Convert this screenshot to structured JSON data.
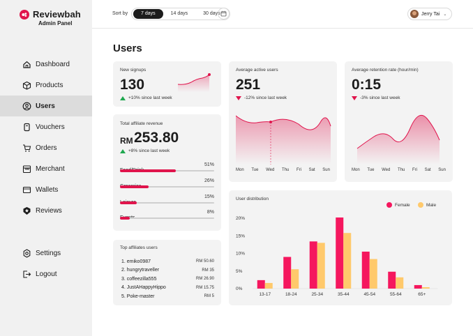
{
  "brand": {
    "name": "Reviewbah",
    "subtitle": "Admin Panel",
    "accent": "#e0144c"
  },
  "nav": {
    "items": [
      {
        "label": "Dashboard",
        "icon": "home-icon"
      },
      {
        "label": "Products",
        "icon": "box-icon"
      },
      {
        "label": "Users",
        "icon": "user-icon",
        "active": true
      },
      {
        "label": "Vouchers",
        "icon": "voucher-icon"
      },
      {
        "label": "Orders",
        "icon": "cart-icon"
      },
      {
        "label": "Merchant",
        "icon": "store-icon"
      },
      {
        "label": "Wallets",
        "icon": "wallet-icon"
      },
      {
        "label": "Reviews",
        "icon": "star-badge-icon"
      }
    ],
    "bottom": [
      {
        "label": "Settings",
        "icon": "gear-icon"
      },
      {
        "label": "Logout",
        "icon": "logout-icon"
      }
    ]
  },
  "topbar": {
    "sort_label": "Sort by",
    "sort_options": [
      "7 days",
      "14 days",
      "30 days"
    ],
    "sort_selected": "7 days",
    "calendar_icon": "calendar-icon",
    "user_name": "Jerry Tai"
  },
  "page": {
    "title": "Users"
  },
  "new_signups": {
    "label": "New signups",
    "value": "130",
    "delta": "+10% since last week",
    "trend": "up"
  },
  "active_users": {
    "label": "Average active users",
    "value": "251",
    "delta": "-12% since last week",
    "trend": "down",
    "days": [
      "Mon",
      "Tue",
      "Wed",
      "Thu",
      "Fri",
      "Sat",
      "Sun"
    ]
  },
  "retention": {
    "label": "Average retention rate (hour/min)",
    "value": "0:15",
    "delta": "-3% since last week",
    "trend": "down",
    "days": [
      "Mon",
      "Tue",
      "Wed",
      "Thu",
      "Fri",
      "Sat",
      "Sun"
    ]
  },
  "revenue": {
    "label": "Total affiliate revenue",
    "currency": "RM",
    "value": "253.80",
    "delta": "+8% since last week",
    "categories": [
      {
        "label": "Food/Drink",
        "pct": "51%",
        "value": 51
      },
      {
        "label": "Groceries",
        "pct": "26%",
        "value": 26
      },
      {
        "label": "Leisure",
        "pct": "15%",
        "value": 15
      },
      {
        "label": "Events",
        "pct": "8%",
        "value": 8
      }
    ]
  },
  "top_affiliates": {
    "label": "Top affiliates users",
    "rows": [
      {
        "name": "1.  emiko0987",
        "amount": "RM 50.60"
      },
      {
        "name": "2.  hungrytraveller",
        "amount": "RM 35"
      },
      {
        "name": "3.  coffeezilla555",
        "amount": "RM 26.90"
      },
      {
        "name": "4.  JustAHappyHippo",
        "amount": "RM 15.75"
      },
      {
        "name": "5.  Poke-master",
        "amount": "RM 5"
      }
    ]
  },
  "distribution": {
    "label": "User distribution",
    "legend": [
      {
        "name": "Female",
        "color": "#f5175e"
      },
      {
        "name": "Male",
        "color": "#ffc96b"
      }
    ]
  },
  "chart_data": {
    "type": "bar",
    "categories": [
      "13-17",
      "18-24",
      "25-34",
      "35-44",
      "45-54",
      "55-64",
      "65+"
    ],
    "series": [
      {
        "name": "Female",
        "values": [
          2.4,
          9.0,
          13.4,
          20.2,
          10.5,
          4.8,
          1.0
        ]
      },
      {
        "name": "Male",
        "values": [
          1.6,
          5.5,
          13.0,
          15.8,
          8.4,
          3.2,
          0.4
        ]
      }
    ],
    "yticks": [
      "0%",
      "5%",
      "10%",
      "15%",
      "20%"
    ],
    "ylim": [
      0,
      20
    ],
    "grid": false,
    "legend": "top-right"
  }
}
